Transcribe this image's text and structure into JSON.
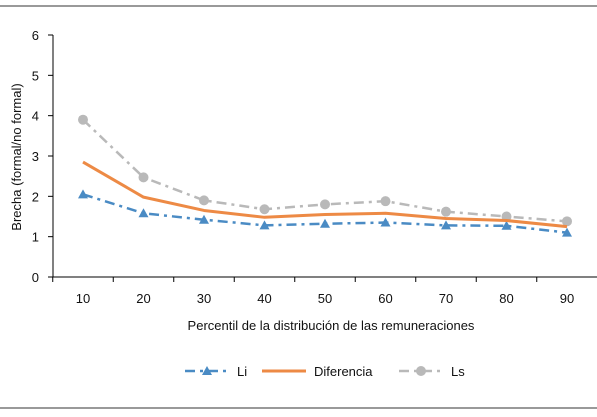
{
  "chart_data": {
    "type": "line",
    "xlabel": "Percentil de la distribución de las remuneraciones",
    "ylabel": "Brecha (formal/no formal)",
    "x": [
      10,
      20,
      30,
      40,
      50,
      60,
      70,
      80,
      90
    ],
    "ylim": [
      0,
      6
    ],
    "yticks": [
      0,
      1,
      2,
      3,
      4,
      5,
      6
    ],
    "grid": false,
    "legend_position": "bottom",
    "series": [
      {
        "name": "Li",
        "color": "#4a8bc4",
        "marker": "triangle",
        "dash": "dash-dot",
        "values": [
          2.05,
          1.58,
          1.42,
          1.28,
          1.32,
          1.35,
          1.28,
          1.27,
          1.1
        ]
      },
      {
        "name": "Diferencia",
        "color": "#ed8a45",
        "marker": "none",
        "dash": "solid",
        "values": [
          2.85,
          1.98,
          1.65,
          1.48,
          1.55,
          1.58,
          1.45,
          1.4,
          1.25
        ]
      },
      {
        "name": "Ls",
        "color": "#b9b9b9",
        "marker": "circle",
        "dash": "dash-dot",
        "values": [
          3.9,
          2.47,
          1.9,
          1.68,
          1.8,
          1.88,
          1.62,
          1.5,
          1.38
        ]
      }
    ]
  }
}
